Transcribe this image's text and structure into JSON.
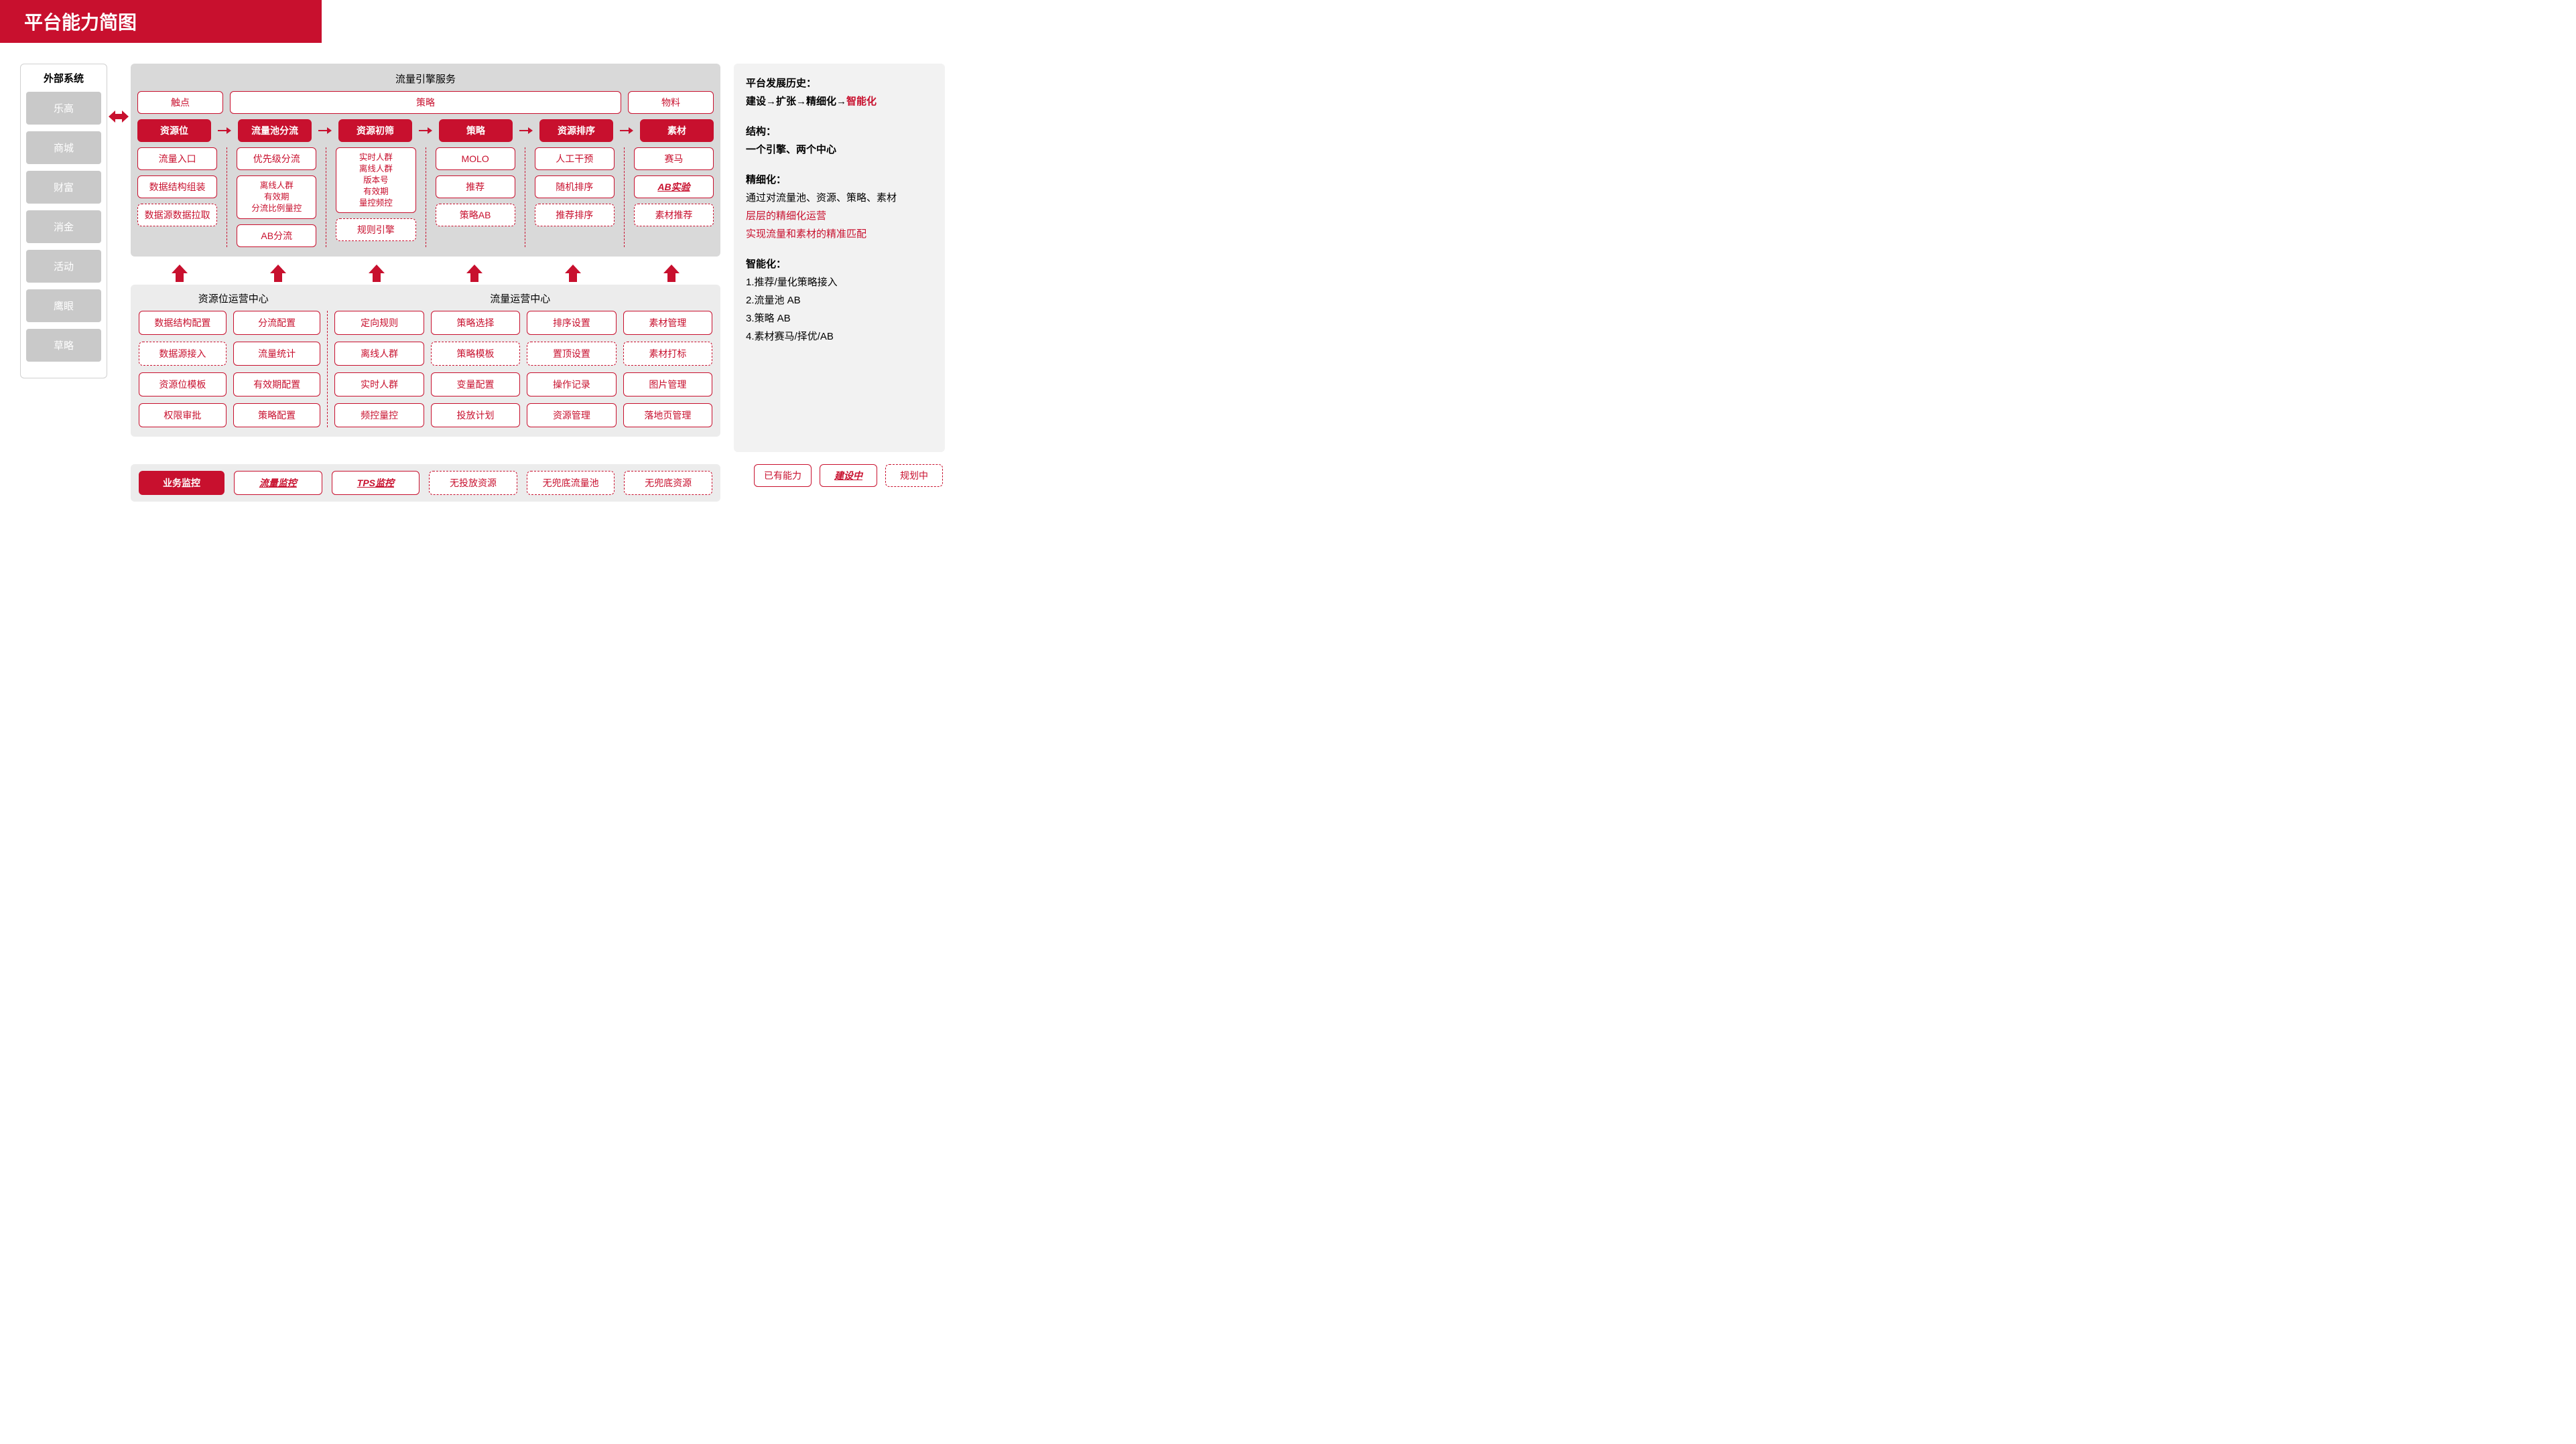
{
  "colors": {
    "brand": "#c8102e",
    "panel_grey": "#d9d9d9",
    "panel_light": "#ececec",
    "ext_grey": "#c9c9c9",
    "bg": "#ffffff"
  },
  "title": "平台能力简图",
  "external": {
    "title": "外部系统",
    "items": [
      "乐高",
      "商城",
      "财富",
      "消金",
      "活动",
      "鹰眼",
      "草略"
    ]
  },
  "engine": {
    "title": "流量引擎服务",
    "header_row": {
      "left": "触点",
      "mid": "策略",
      "right": "物料"
    },
    "flow": [
      "资源位",
      "流量池分流",
      "资源初筛",
      "策略",
      "资源排序",
      "素材"
    ],
    "columns": [
      {
        "cells": [
          {
            "text": "流量入口",
            "style": "solid"
          },
          {
            "text": "数据结构组装",
            "style": "solid"
          },
          {
            "text": "数据源数据拉取",
            "style": "dashed"
          }
        ]
      },
      {
        "cells": [
          {
            "text": "优先级分流",
            "style": "solid"
          },
          {
            "text": "离线人群\n有效期\n分流比例量控",
            "style": "solid",
            "multi": true
          },
          {
            "text": "AB分流",
            "style": "solid"
          }
        ]
      },
      {
        "cells": [
          {
            "text": "实时人群\n离线人群\n版本号\n有效期\n量控频控",
            "style": "solid",
            "multi": true
          },
          {
            "text": "规则引擎",
            "style": "dashed"
          }
        ]
      },
      {
        "cells": [
          {
            "text": "MOLO",
            "style": "solid"
          },
          {
            "text": "推荐",
            "style": "solid"
          },
          {
            "text": "策略AB",
            "style": "dashed"
          }
        ]
      },
      {
        "cells": [
          {
            "text": "人工干预",
            "style": "solid"
          },
          {
            "text": "随机排序",
            "style": "solid"
          },
          {
            "text": "推荐排序",
            "style": "dashed"
          }
        ]
      },
      {
        "cells": [
          {
            "text": "赛马",
            "style": "solid"
          },
          {
            "text": "AB实验",
            "style": "italic"
          },
          {
            "text": "素材推荐",
            "style": "dashed"
          }
        ]
      }
    ]
  },
  "ops": {
    "left_title": "资源位运营中心",
    "right_title": "流量运营中心",
    "left_cols": [
      [
        {
          "text": "数据结构配置",
          "style": "solid"
        },
        {
          "text": "数据源接入",
          "style": "dashed"
        },
        {
          "text": "资源位模板",
          "style": "solid"
        },
        {
          "text": "权限审批",
          "style": "solid"
        }
      ],
      [
        {
          "text": "分流配置",
          "style": "solid"
        },
        {
          "text": "流量统计",
          "style": "solid"
        },
        {
          "text": "有效期配置",
          "style": "solid"
        },
        {
          "text": "策略配置",
          "style": "solid"
        }
      ]
    ],
    "right_cols": [
      [
        {
          "text": "定向规则",
          "style": "solid"
        },
        {
          "text": "离线人群",
          "style": "solid"
        },
        {
          "text": "实时人群",
          "style": "solid"
        },
        {
          "text": "频控量控",
          "style": "solid"
        }
      ],
      [
        {
          "text": "策略选择",
          "style": "solid"
        },
        {
          "text": "策略模板",
          "style": "dashed"
        },
        {
          "text": "变量配置",
          "style": "solid"
        },
        {
          "text": "投放计划",
          "style": "solid"
        }
      ],
      [
        {
          "text": "排序设置",
          "style": "solid"
        },
        {
          "text": "置顶设置",
          "style": "dashed"
        },
        {
          "text": "操作记录",
          "style": "solid"
        },
        {
          "text": "资源管理",
          "style": "solid"
        }
      ],
      [
        {
          "text": "素材管理",
          "style": "solid"
        },
        {
          "text": "素材打标",
          "style": "dashed"
        },
        {
          "text": "图片管理",
          "style": "solid"
        },
        {
          "text": "落地页管理",
          "style": "solid"
        }
      ]
    ]
  },
  "monitor": {
    "label": "业务监控",
    "items": [
      {
        "text": "流量监控",
        "style": "italic"
      },
      {
        "text": "TPS监控",
        "style": "italic"
      },
      {
        "text": "无投放资源",
        "style": "dashed"
      },
      {
        "text": "无兜底流量池",
        "style": "dashed"
      },
      {
        "text": "无兜底资源",
        "style": "dashed"
      }
    ]
  },
  "right": {
    "h1": "平台发展历史：",
    "chain": [
      "建设",
      "扩张",
      "精细化",
      "智能化"
    ],
    "h2": "结构：",
    "p2": "一个引擎、两个中心",
    "h3": "精细化：",
    "p3a": "通过对流量池、资源、策略、素材",
    "p3b": "层层的精细化运营",
    "p3c": "实现流量和素材的精准匹配",
    "h4": "智能化：",
    "list4": [
      "1.推荐/量化策略接入",
      "2.流量池 AB",
      "3.策略 AB",
      "4.素材赛马/择优/AB"
    ]
  },
  "legend": {
    "have": "已有能力",
    "building": "建设中",
    "plan": "规划中"
  }
}
